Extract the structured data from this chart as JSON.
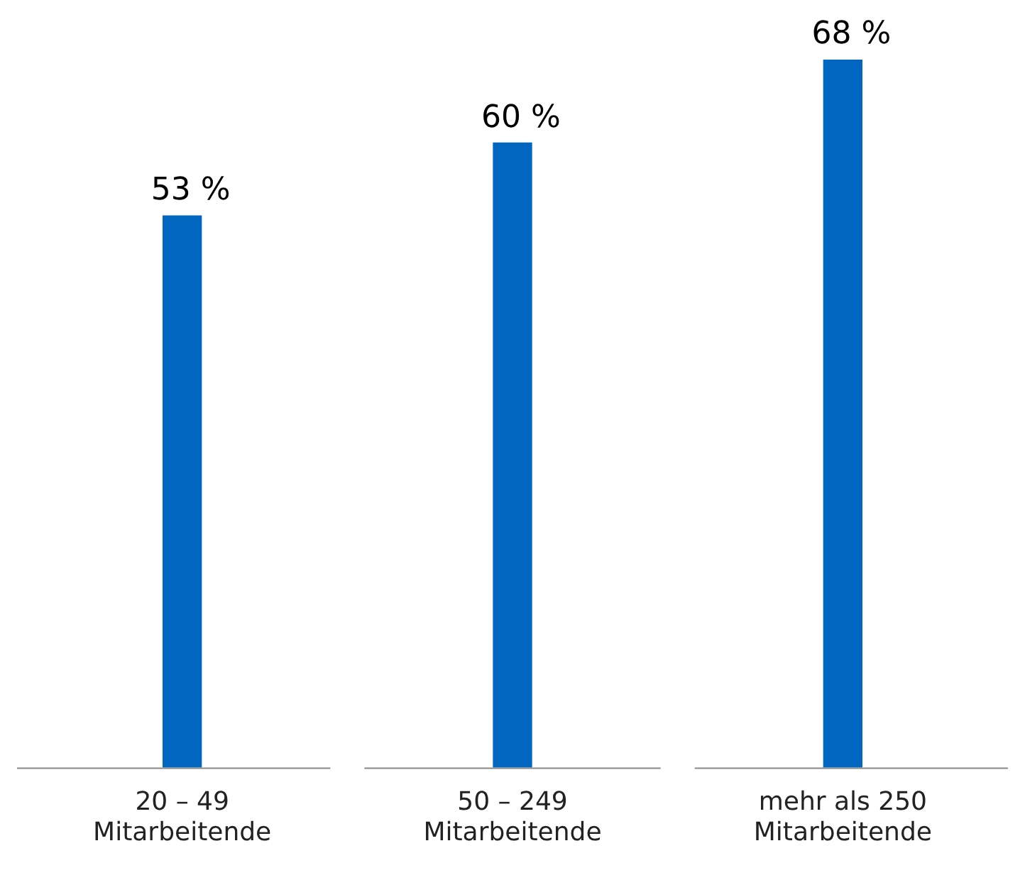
{
  "chart_data": {
    "type": "bar",
    "categories": [
      "20 – 49\nMitarbeitende",
      "50 – 249\nMitarbeitende",
      "mehr als 250\nMitarbeitende"
    ],
    "values": [
      53,
      60,
      68
    ],
    "color": "#0066c0",
    "value_labels": [
      "53 %",
      "60 %",
      "68 %"
    ],
    "grid": false,
    "legend": false
  }
}
